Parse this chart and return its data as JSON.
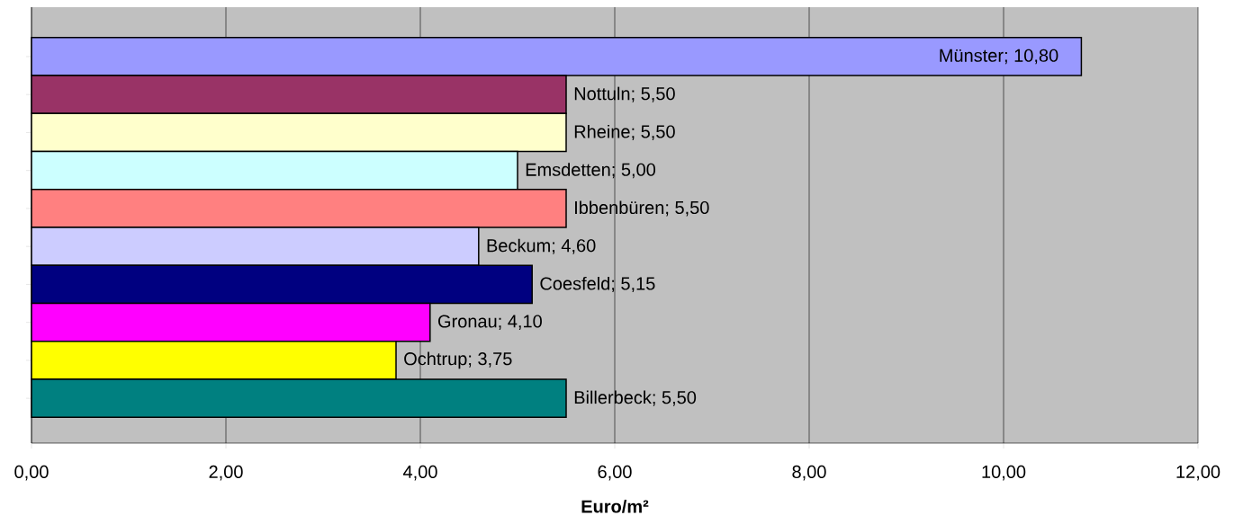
{
  "chart_data": {
    "type": "bar",
    "orientation": "horizontal",
    "xlabel": "Euro/m**²**",
    "categories": [
      null,
      null,
      null,
      null,
      null,
      null,
      null,
      null,
      null,
      null
    ],
    "values": [
      10.8,
      5.5,
      5.5,
      5.0,
      5.5,
      4.6,
      5.15,
      4.1,
      3.75,
      5.5
    ],
    "value_labels": [
      "Münster; 10,80",
      "Nottuln; 5,50",
      "Rheine; 5,50",
      "Emsdetten; 5,00",
      "Ibbenbüren; 5,50",
      "Beckum; 4,60",
      "Coesfeld; 5,15",
      "Gronau; 4,10",
      "Ochtrup; 3,75",
      "Billerbeck; 5,50"
    ],
    "colors": [
      "#9999ff",
      "#993366",
      "#ffffcc",
      "#ccffff",
      "#ff8080",
      "#ccccff",
      "#000080",
      "#ff00ff",
      "#ffff00",
      "#008080"
    ],
    "xlim": [
      0,
      12
    ],
    "xticks": [
      {
        "value": 0,
        "label": "0,00"
      },
      {
        "value": 2,
        "label": "2,00"
      },
      {
        "value": 4,
        "label": "4,00"
      },
      {
        "value": 6,
        "label": "6,00"
      },
      {
        "value": 8,
        "label": "8,00"
      },
      {
        "value": 10,
        "label": "10,00"
      },
      {
        "value": 12,
        "label": "12,00"
      }
    ],
    "grid": "x"
  }
}
